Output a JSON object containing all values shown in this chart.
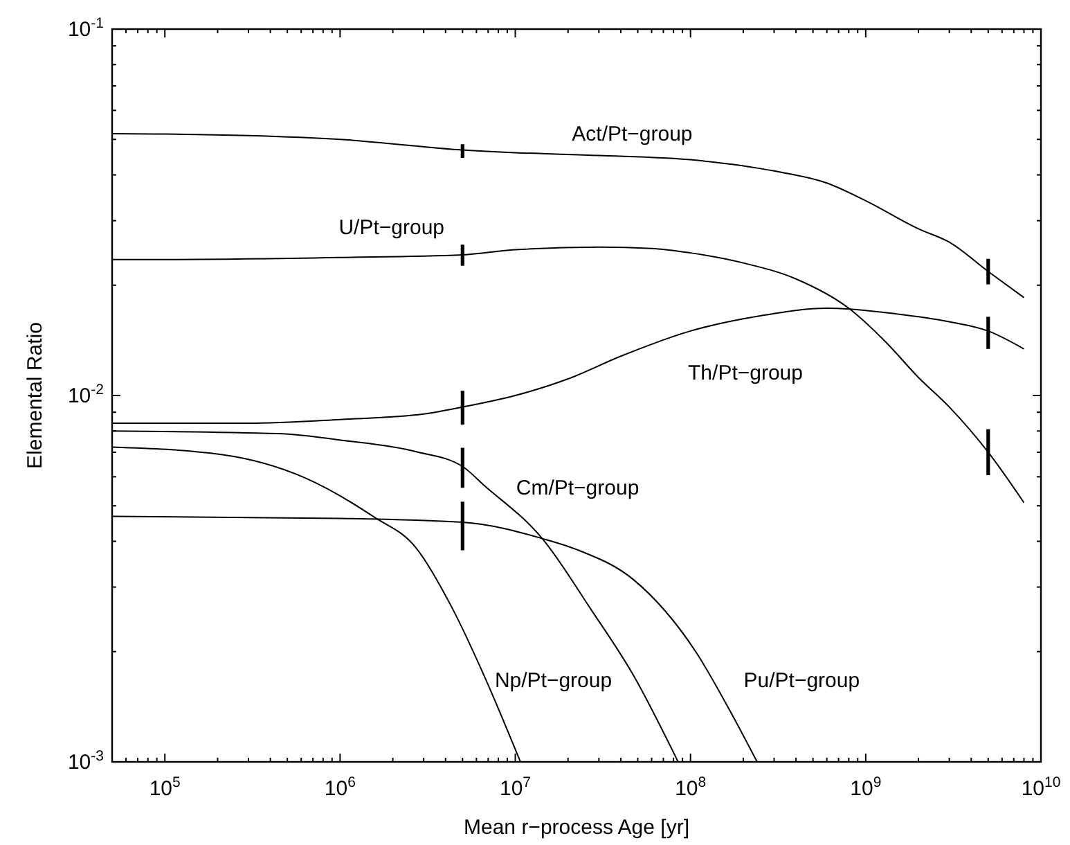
{
  "chart_data": {
    "type": "line",
    "xlabel": "Mean r−process Age [yr]",
    "ylabel": "Elemental Ratio",
    "log": "xy",
    "xlim": [
      50000,
      10000000000
    ],
    "ylim": [
      0.001,
      0.1
    ],
    "xticks": [
      {
        "value": 60000,
        "label": null
      },
      {
        "value": 70000,
        "label": null
      },
      {
        "value": 80000,
        "label": null
      },
      {
        "value": 90000,
        "label": null
      },
      {
        "value": 100000,
        "label": "10$^{5}$"
      },
      {
        "value": 200000,
        "label": null
      },
      {
        "value": 300000,
        "label": null
      },
      {
        "value": 400000,
        "label": null
      },
      {
        "value": 500000,
        "label": null
      },
      {
        "value": 600000,
        "label": null
      },
      {
        "value": 700000,
        "label": null
      },
      {
        "value": 800000,
        "label": null
      },
      {
        "value": 900000,
        "label": null
      },
      {
        "value": 1000000,
        "label": "10$^{6}$"
      },
      {
        "value": 2000000,
        "label": null
      },
      {
        "value": 3000000,
        "label": null
      },
      {
        "value": 4000000,
        "label": null
      },
      {
        "value": 5000000,
        "label": null
      },
      {
        "value": 6000000,
        "label": null
      },
      {
        "value": 7000000,
        "label": null
      },
      {
        "value": 8000000,
        "label": null
      },
      {
        "value": 9000000,
        "label": null
      },
      {
        "value": 10000000,
        "label": "10$^{7}$"
      },
      {
        "value": 20000000,
        "label": null
      },
      {
        "value": 30000000,
        "label": null
      },
      {
        "value": 40000000,
        "label": null
      },
      {
        "value": 50000000,
        "label": null
      },
      {
        "value": 60000000,
        "label": null
      },
      {
        "value": 70000000,
        "label": null
      },
      {
        "value": 80000000,
        "label": null
      },
      {
        "value": 90000000,
        "label": null
      },
      {
        "value": 100000000,
        "label": "10$^{8}$"
      },
      {
        "value": 200000000,
        "label": null
      },
      {
        "value": 300000000,
        "label": null
      },
      {
        "value": 400000000,
        "label": null
      },
      {
        "value": 500000000,
        "label": null
      },
      {
        "value": 600000000,
        "label": null
      },
      {
        "value": 700000000,
        "label": null
      },
      {
        "value": 800000000,
        "label": null
      },
      {
        "value": 900000000,
        "label": null
      },
      {
        "value": 1000000000,
        "label": "10$^{9}$"
      },
      {
        "value": 2000000000,
        "label": null
      },
      {
        "value": 3000000000,
        "label": null
      },
      {
        "value": 4000000000,
        "label": null
      },
      {
        "value": 5000000000,
        "label": null
      },
      {
        "value": 6000000000,
        "label": null
      },
      {
        "value": 7000000000,
        "label": null
      },
      {
        "value": 8000000000,
        "label": null
      },
      {
        "value": 9000000000,
        "label": null
      },
      {
        "value": 10000000000,
        "label": "10$^{10}$"
      }
    ],
    "yticks": [
      {
        "value": 0.001,
        "label": "10$^{-3}$"
      },
      {
        "value": 0.002,
        "label": null
      },
      {
        "value": 0.003,
        "label": null
      },
      {
        "value": 0.004,
        "label": null
      },
      {
        "value": 0.005,
        "label": null
      },
      {
        "value": 0.006,
        "label": null
      },
      {
        "value": 0.007,
        "label": null
      },
      {
        "value": 0.008,
        "label": null
      },
      {
        "value": 0.009,
        "label": null
      },
      {
        "value": 0.01,
        "label": "10$^{-2}$"
      },
      {
        "value": 0.02,
        "label": null
      },
      {
        "value": 0.03,
        "label": null
      },
      {
        "value": 0.04,
        "label": null
      },
      {
        "value": 0.05,
        "label": null
      },
      {
        "value": 0.06,
        "label": null
      },
      {
        "value": 0.07,
        "label": null
      },
      {
        "value": 0.08,
        "label": null
      },
      {
        "value": 0.09,
        "label": null
      },
      {
        "value": 0.1,
        "label": "10$^{-1}$"
      }
    ],
    "grid": false,
    "marker": "none",
    "line_style": "solid",
    "series": [
      {
        "name": "Act/Pt−group",
        "color": "#000000",
        "x": [
          50000,
          100000,
          300000,
          1000000,
          5000000,
          10000000,
          30000000,
          100000000,
          300000000,
          600000000,
          1000000000,
          2000000000,
          3000000000,
          5000000000,
          8000000000
        ],
        "values": [
          0.0518,
          0.0517,
          0.0512,
          0.05,
          0.0468,
          0.046,
          0.0452,
          0.044,
          0.041,
          0.038,
          0.034,
          0.0285,
          0.0262,
          0.0218,
          0.0185
        ],
        "errors": [
          null,
          null,
          null,
          null,
          [
            0.0445,
            0.0485
          ],
          null,
          null,
          null,
          null,
          null,
          null,
          null,
          null,
          [
            0.0201,
            0.0236
          ],
          null
        ]
      },
      {
        "name": "U/Pt−group",
        "color": "#000000",
        "x": [
          50000,
          100000,
          1000000,
          5000000,
          10000000,
          30000000,
          60000000,
          100000000,
          200000000,
          400000000,
          800000000,
          1300000000,
          2000000000,
          3000000000,
          5000000000,
          8000000000
        ],
        "values": [
          0.0235,
          0.0235,
          0.0238,
          0.0242,
          0.025,
          0.0254,
          0.0252,
          0.0245,
          0.023,
          0.0208,
          0.0173,
          0.014,
          0.0112,
          0.0093,
          0.007,
          0.0051
        ],
        "errors": [
          null,
          null,
          null,
          [
            0.0226,
            0.0258
          ],
          null,
          null,
          null,
          null,
          null,
          null,
          null,
          null,
          null,
          null,
          [
            0.00606,
            0.00809
          ],
          null
        ]
      },
      {
        "name": "Th/Pt−group",
        "color": "#000000",
        "x": [
          50000,
          300000,
          1000000,
          3000000,
          5000000,
          10000000,
          20000000,
          40000000,
          100000000,
          250000000,
          600000000,
          1500000000,
          3000000000,
          5000000000,
          8000000000
        ],
        "values": [
          0.0084,
          0.0084,
          0.0086,
          0.0089,
          0.0093,
          0.01,
          0.0111,
          0.0128,
          0.015,
          0.0165,
          0.0173,
          0.0167,
          0.0159,
          0.015,
          0.0134
        ],
        "errors": [
          null,
          null,
          null,
          null,
          [
            0.00833,
            0.0103
          ],
          null,
          null,
          null,
          null,
          null,
          null,
          null,
          null,
          [
            0.0134,
            0.0164
          ],
          null
        ]
      },
      {
        "name": "Cm/Pt−group",
        "color": "#000000",
        "x": [
          50000,
          440000,
          1070000,
          2700000,
          5000000,
          6600000,
          14500000,
          27000000,
          47000000,
          85000000
        ],
        "values": [
          0.008,
          0.00787,
          0.00753,
          0.00703,
          0.0064,
          0.0057,
          0.00403,
          0.00261,
          0.00173,
          0.001
        ],
        "errors": [
          null,
          null,
          null,
          null,
          [
            0.0056,
            0.0072
          ],
          null,
          null,
          null,
          null,
          null
        ]
      },
      {
        "name": "Np/Pt−group",
        "color": "#000000",
        "x": [
          50000,
          210000,
          630000,
          1550000,
          2700000,
          4400000,
          6600000,
          10700000
        ],
        "values": [
          0.00723,
          0.0069,
          0.00596,
          0.00467,
          0.00385,
          0.00261,
          0.00173,
          0.001
        ]
      },
      {
        "name": "Pu/Pt−group",
        "color": "#000000",
        "x": [
          50000,
          1000000,
          5000000,
          14500000,
          23000000,
          47000000,
          107000000,
          175000000,
          240000000
        ],
        "values": [
          0.00468,
          0.00462,
          0.00451,
          0.00406,
          0.00378,
          0.00315,
          0.002,
          0.00133,
          0.001
        ],
        "errors": [
          null,
          null,
          [
            0.00378,
            0.00513
          ],
          null,
          null,
          null,
          null,
          null,
          null
        ]
      }
    ]
  }
}
